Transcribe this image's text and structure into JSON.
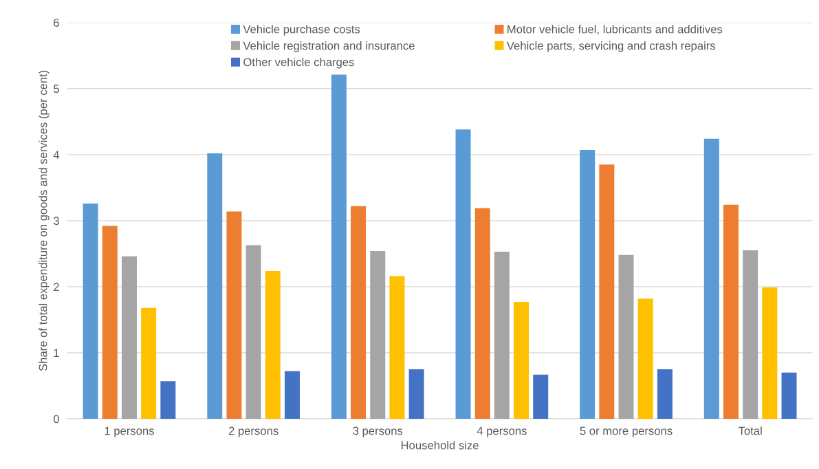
{
  "chart_data": {
    "type": "bar",
    "xlabel": "Household size",
    "ylabel": "Share of total expenditure on goods and services (per cent)",
    "categories": [
      "1 persons",
      "2 persons",
      "3 persons",
      "4 persons",
      "5 or more persons",
      "Total"
    ],
    "series": [
      {
        "name": "Vehicle purchase costs",
        "color": "#5b9bd5",
        "values": [
          3.26,
          4.02,
          5.21,
          4.38,
          4.07,
          4.24
        ]
      },
      {
        "name": "Motor vehicle fuel, lubricants and additives",
        "color": "#ed7d31",
        "values": [
          2.92,
          3.14,
          3.22,
          3.19,
          3.85,
          3.24
        ]
      },
      {
        "name": "Vehicle registration and insurance",
        "color": "#a5a5a5",
        "values": [
          2.46,
          2.63,
          2.54,
          2.53,
          2.48,
          2.55
        ]
      },
      {
        "name": "Vehicle parts, servicing and crash repairs",
        "color": "#ffc000",
        "values": [
          1.68,
          2.24,
          2.16,
          1.77,
          1.82,
          1.99
        ]
      },
      {
        "name": "Other vehicle charges",
        "color": "#4472c4",
        "values": [
          0.57,
          0.72,
          0.75,
          0.67,
          0.75,
          0.7
        ]
      }
    ],
    "ylim": [
      0,
      6
    ],
    "yticks": [
      0,
      1,
      2,
      3,
      4,
      5,
      6
    ],
    "grid": "y",
    "legend": "top"
  }
}
